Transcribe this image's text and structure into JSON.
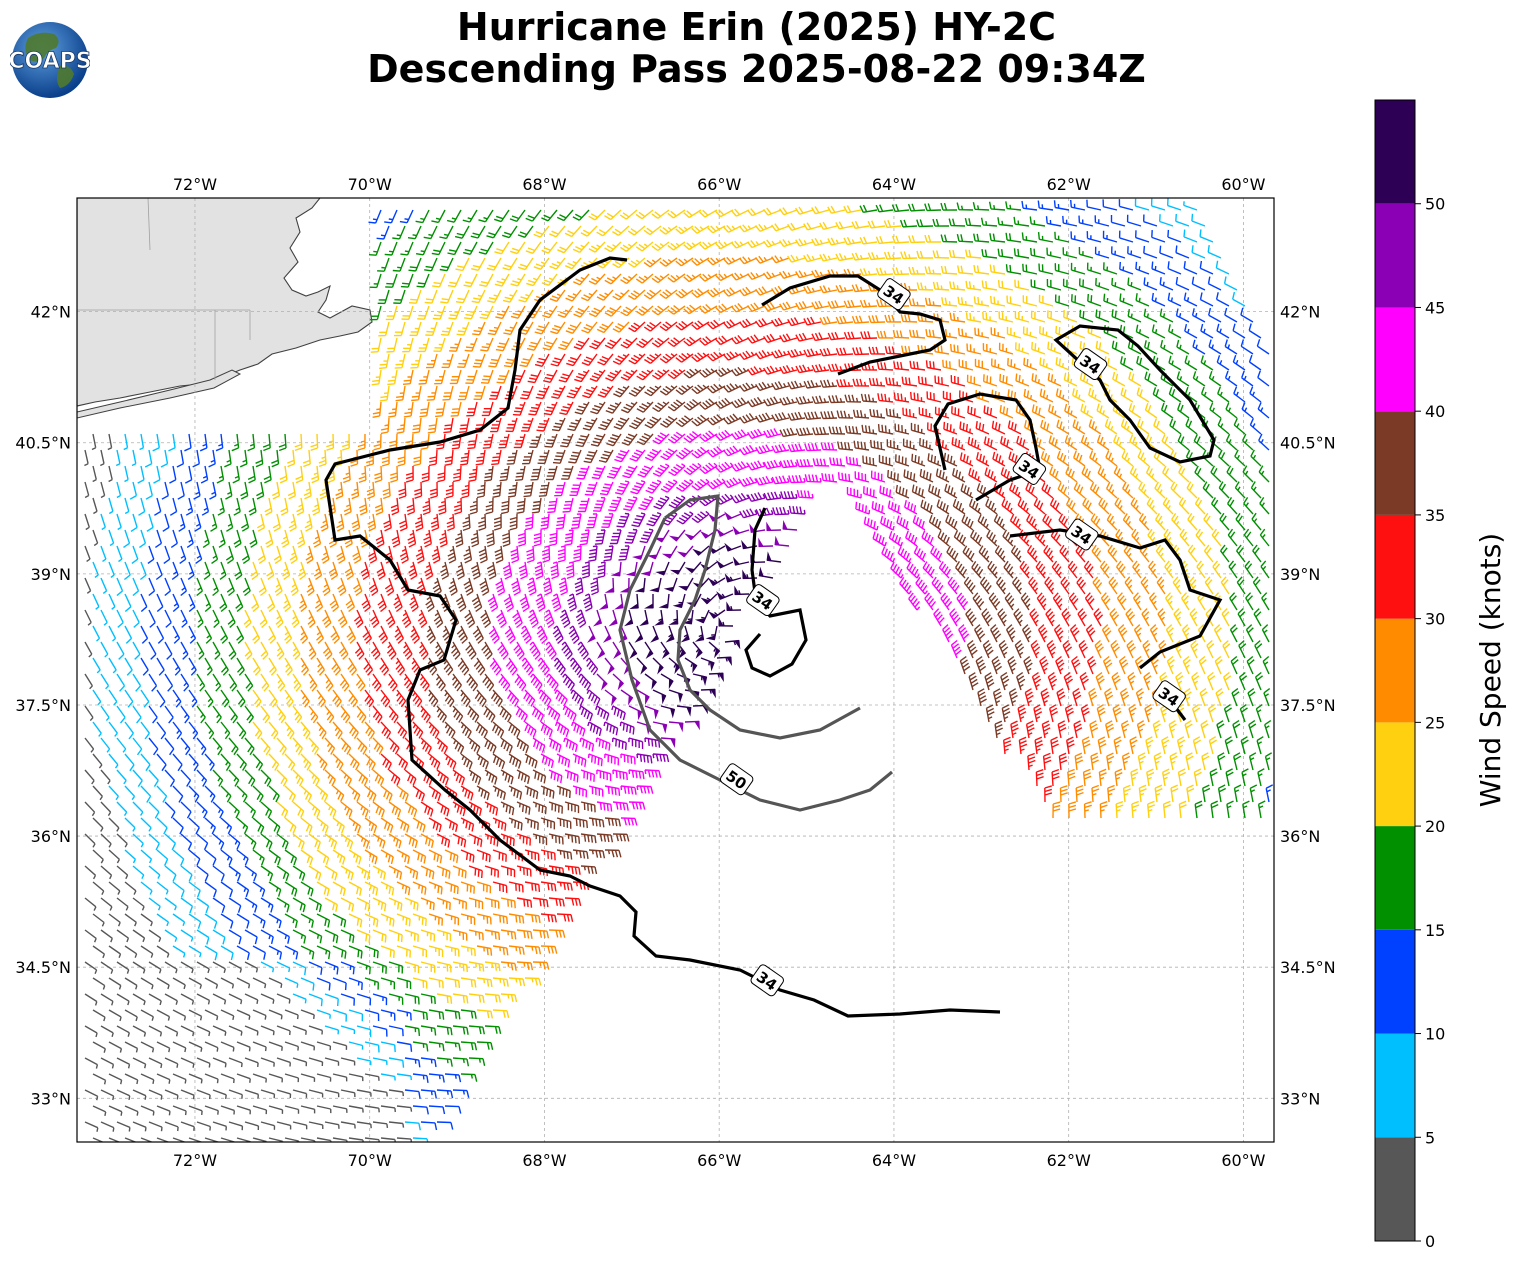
{
  "header": {
    "title_line1": "Hurricane Erin (2025) HY-2C",
    "title_line2": "Descending Pass 2025-08-22 09:34Z",
    "logo_text": "COAPS"
  },
  "map": {
    "lon_ticks": [
      "72°W",
      "70°W",
      "68°W",
      "66°W",
      "64°W",
      "62°W",
      "60°W"
    ],
    "lat_ticks": [
      "42°N",
      "40.5°N",
      "39°N",
      "37.5°N",
      "36°N",
      "34.5°N",
      "33°N"
    ],
    "extent": {
      "lon_min": -73.35,
      "lon_max": -59.65,
      "lat_min": 32.5,
      "lat_max": 43.3
    },
    "land_color": "#e2e2e2",
    "coast_color": "#404040",
    "contour_labels": [
      {
        "text": "34",
        "lon": -64.0,
        "lat": 42.2
      },
      {
        "text": "34",
        "lon": -61.75,
        "lat": 41.4
      },
      {
        "text": "34",
        "lon": -62.45,
        "lat": 40.2
      },
      {
        "text": "34",
        "lon": -61.85,
        "lat": 39.45
      },
      {
        "text": "34",
        "lon": -65.5,
        "lat": 38.7
      },
      {
        "text": "34",
        "lon": -60.85,
        "lat": 37.6
      },
      {
        "text": "50",
        "lon": -65.8,
        "lat": 36.65
      },
      {
        "text": "34",
        "lon": -65.45,
        "lat": 34.35
      }
    ]
  },
  "colorbar": {
    "label": "Wind Speed (knots)",
    "tick_labels": [
      "0",
      "5",
      "10",
      "15",
      "20",
      "25",
      "30",
      "35",
      "40",
      "45",
      "50"
    ],
    "bins": [
      {
        "min": 0,
        "max": 5,
        "color": "#575757"
      },
      {
        "min": 5,
        "max": 10,
        "color": "#00bfff"
      },
      {
        "min": 10,
        "max": 15,
        "color": "#0040ff"
      },
      {
        "min": 15,
        "max": 20,
        "color": "#009000"
      },
      {
        "min": 20,
        "max": 25,
        "color": "#ffd010"
      },
      {
        "min": 25,
        "max": 30,
        "color": "#ff8c00"
      },
      {
        "min": 30,
        "max": 35,
        "color": "#ff1010"
      },
      {
        "min": 35,
        "max": 40,
        "color": "#7b3a26"
      },
      {
        "min": 40,
        "max": 45,
        "color": "#ff00ff"
      },
      {
        "min": 45,
        "max": 50,
        "color": "#8b00b4"
      },
      {
        "min": 50,
        "max": 55,
        "color": "#2d0055"
      }
    ]
  },
  "chart_data": {
    "type": "wind barb map",
    "center": {
      "lon": -65.9,
      "lat": 38.3
    },
    "contours_knots": [
      34,
      50
    ],
    "wind_speed_units": "knots"
  }
}
